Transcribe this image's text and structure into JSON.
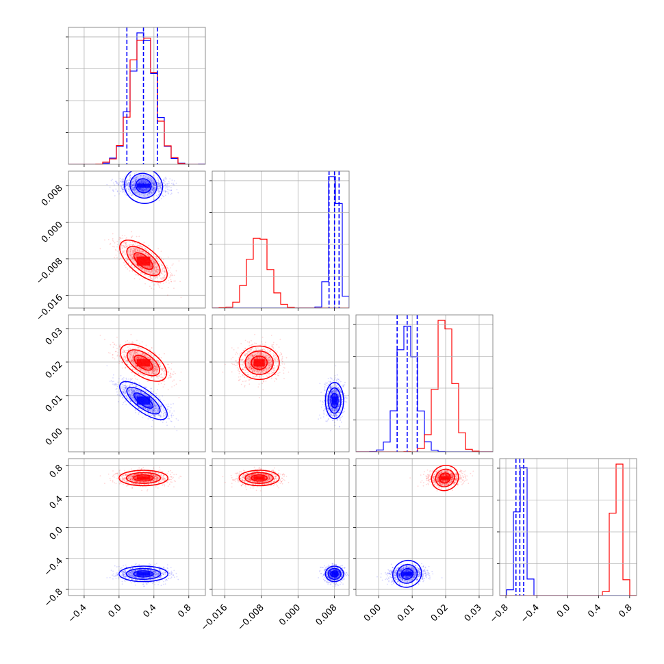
{
  "chart_data": {
    "type": "scatter",
    "title": "",
    "layout": "corner-plot",
    "parameters": [
      {
        "label": "",
        "range": [
          -0.58,
          0.99
        ],
        "ticks": [
          -0.4,
          0.0,
          0.4,
          0.8
        ],
        "tick_labels": [
          "−0.4",
          "0.0",
          "0.4",
          "0.8"
        ]
      },
      {
        "label": "",
        "range": [
          -0.0188,
          0.0112
        ],
        "ticks": [
          -0.016,
          -0.008,
          0.0,
          0.008
        ],
        "tick_labels": [
          "−0.016",
          "−0.008",
          "0.000",
          "0.008"
        ]
      },
      {
        "label": "",
        "range": [
          -0.0068,
          0.0341
        ],
        "ticks": [
          0.0,
          0.01,
          0.02,
          0.03
        ],
        "tick_labels": [
          "0.00",
          "0.01",
          "0.02",
          "0.03"
        ]
      },
      {
        "label": "",
        "range": [
          -0.88,
          0.89
        ],
        "ticks": [
          -0.8,
          -0.4,
          0.0,
          0.4,
          0.8
        ],
        "tick_labels": [
          "−0.8",
          "−0.4",
          "0.0",
          "0.4",
          "0.8"
        ]
      }
    ],
    "grid": true,
    "series": [
      {
        "color": "#0000ff",
        "means": [
          0.28,
          0.008,
          0.0085,
          -0.6
        ],
        "stds": [
          0.14,
          0.001,
          0.0027,
          0.05
        ],
        "quantiles": [
          [
            0.09,
            0.28,
            0.44
          ],
          [
            0.0068,
            0.008,
            0.009
          ],
          [
            0.0055,
            0.0085,
            0.0115
          ],
          [
            -0.67,
            -0.62,
            -0.57
          ]
        ],
        "correlations": [
          [
            0,
            1,
            -0.1
          ],
          [
            0,
            2,
            -0.75
          ],
          [
            0,
            3,
            0.0
          ],
          [
            1,
            2,
            0.0
          ],
          [
            1,
            3,
            0.0
          ],
          [
            2,
            3,
            0.1
          ]
        ]
      },
      {
        "color": "#ff0000",
        "means": [
          0.28,
          -0.0085,
          0.0198,
          0.64
        ],
        "stds": [
          0.14,
          0.0022,
          0.0025,
          0.05
        ],
        "quantiles": [],
        "correlations": [
          [
            0,
            1,
            -0.65
          ],
          [
            0,
            2,
            -0.6
          ],
          [
            0,
            3,
            0.0
          ],
          [
            1,
            2,
            0.0
          ],
          [
            1,
            3,
            0.0
          ],
          [
            2,
            3,
            0.1
          ]
        ]
      }
    ]
  }
}
